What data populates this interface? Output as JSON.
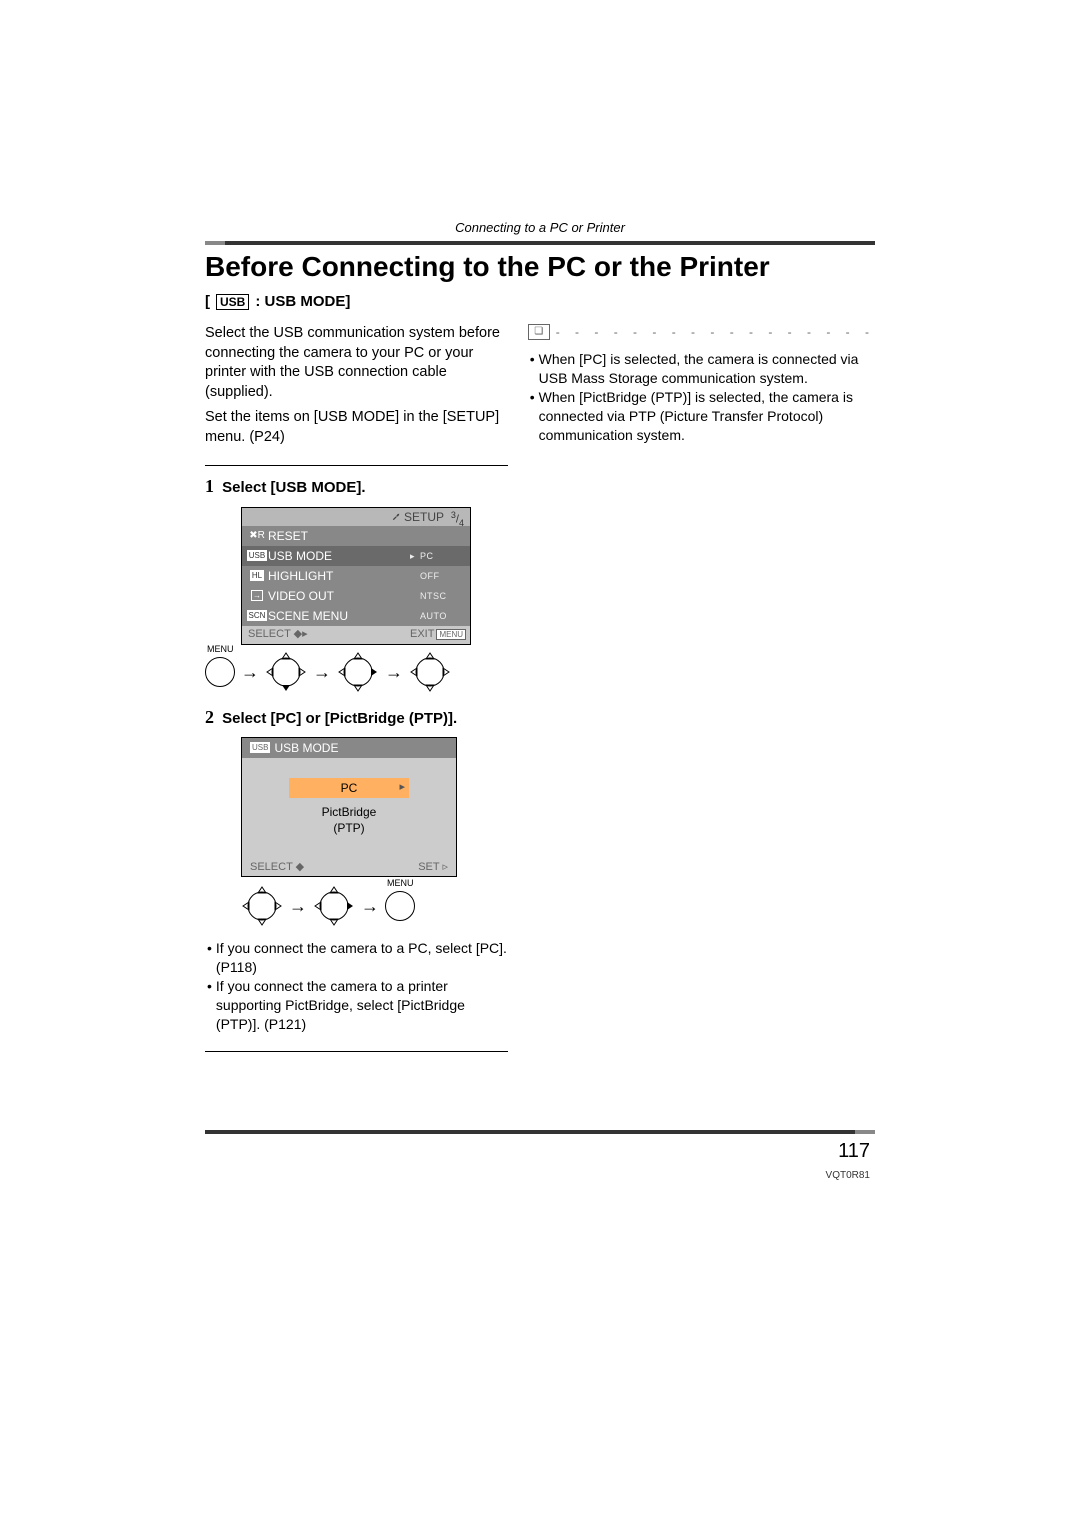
{
  "header": {
    "section": "Connecting to a PC or Printer"
  },
  "title": "Before Connecting to the PC or the Printer",
  "subtitle": {
    "badge": "USB",
    "prefix": "[",
    "suffix": ": USB MODE]"
  },
  "left_intro": {
    "p1": "Select the USB communication system before connecting the camera to your PC or your printer with the USB connection cable (supplied).",
    "p2": "Set the items on [USB MODE] in the [SETUP] menu. (P24)"
  },
  "step1": {
    "num": "1",
    "title": "Select [USB MODE].",
    "lcd": {
      "setup_label": "SETUP",
      "page_indicator_num": "3",
      "page_indicator_den": "4",
      "rows": [
        {
          "icon_type": "reset",
          "icon_text": "✖R",
          "label": "RESET",
          "value": "",
          "arrow": ""
        },
        {
          "icon_type": "usb",
          "icon_text": "USB",
          "label": "USB MODE",
          "value": "PC",
          "arrow": "▸",
          "selected": true
        },
        {
          "icon_type": "hl",
          "icon_text": "HL",
          "label": "HIGHLIGHT",
          "value": "OFF",
          "arrow": ""
        },
        {
          "icon_type": "video",
          "icon_text": "→",
          "label": "VIDEO OUT",
          "value": "NTSC",
          "arrow": ""
        },
        {
          "icon_type": "scn",
          "icon_text": "SCN",
          "label": "SCENE MENU",
          "value": "AUTO",
          "arrow": ""
        }
      ],
      "footer_select": "SELECT",
      "footer_exit": "EXIT",
      "footer_menu": "MENU"
    },
    "menu_label": "MENU"
  },
  "step2": {
    "num": "2",
    "title": "Select [PC] or [PictBridge (PTP)].",
    "lcd": {
      "header_badge": "USB",
      "header_label": "USB MODE",
      "opt1": "PC",
      "opt2a": "PictBridge",
      "opt2b": "(PTP)",
      "footer_select": "SELECT",
      "footer_set": "SET"
    },
    "menu_label": "MENU",
    "bullets": [
      "If you connect the camera to a PC, select [PC]. (P118)",
      "If you connect the camera to a printer supporting PictBridge, select [PictBridge (PTP)]. (P121)"
    ]
  },
  "right_col": {
    "bullets": [
      "When [PC] is selected, the camera is connected via USB Mass Storage communication system.",
      "When [PictBridge (PTP)] is selected, the camera is connected via PTP (Picture Transfer Protocol) communication system."
    ]
  },
  "page_number": "117",
  "doc_id": "VQT0R81",
  "colors": {
    "lcd_row_bg": "#888888",
    "lcd_row_sel_bg": "#6a6a6a",
    "lcd_hdr_bg": "#b8b8b8",
    "lcd_ftr_bg": "#c8c8c8",
    "selected_opt_bg": "#ffb060"
  }
}
